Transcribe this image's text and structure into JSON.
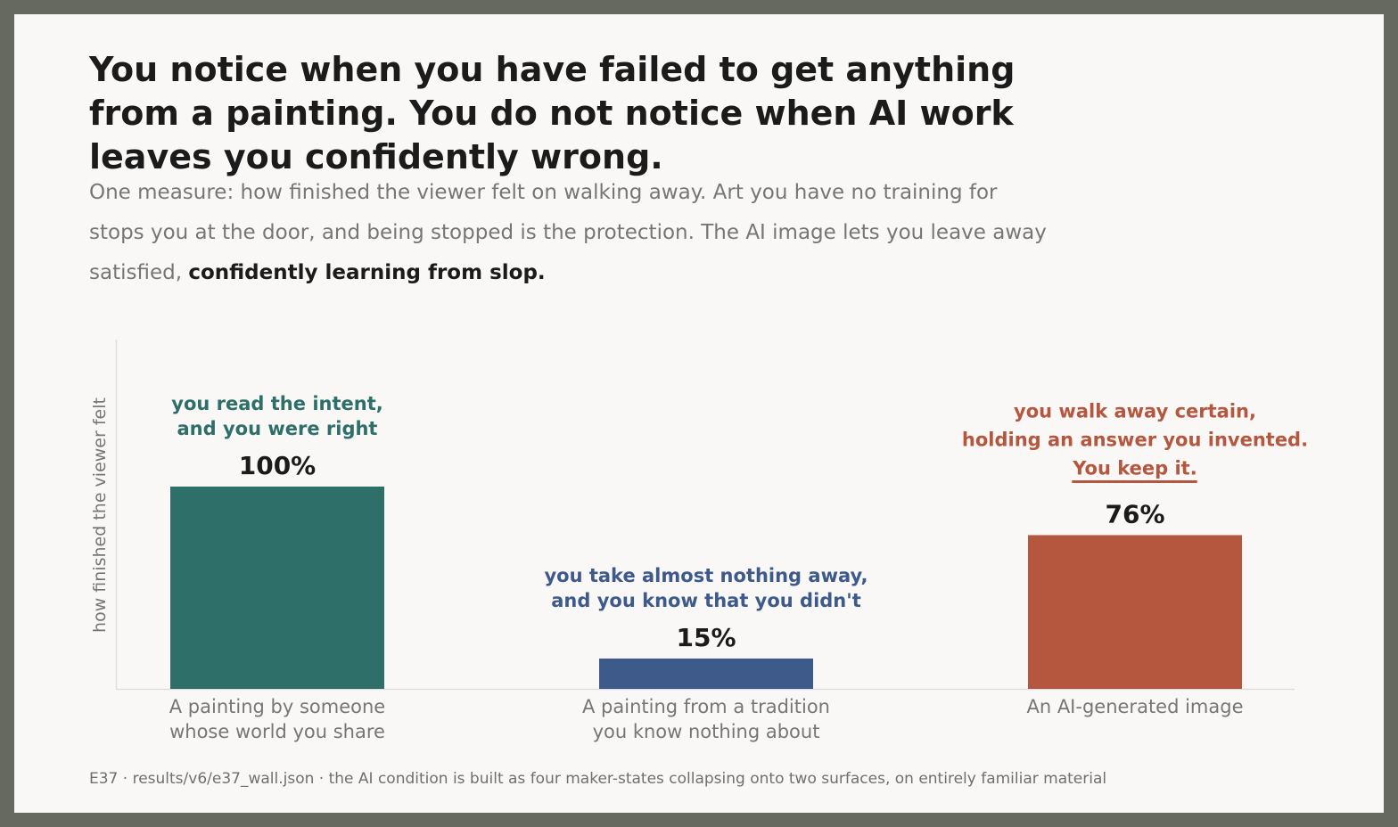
{
  "header": {
    "title": "You notice when you have failed to get anything from a painting. You do not notice when AI work leaves you confidently wrong.",
    "subtitle_plain": "One measure: how finished the viewer felt on walking away. Art you have no training for stops you at the door, and being stopped is the protection. The AI image lets you leave away satisfied, ",
    "subtitle_bold": "confidently learning from slop."
  },
  "chart_data": {
    "type": "bar",
    "ylabel": "how finished the viewer felt",
    "ylim": [
      0,
      100
    ],
    "grid": false,
    "categories": [
      [
        "A painting by someone",
        "whose world you share"
      ],
      [
        "A painting from a tradition",
        "you know nothing about"
      ],
      [
        "An AI-generated image"
      ]
    ],
    "values": [
      100,
      15,
      76
    ],
    "value_labels": [
      "100%",
      "15%",
      "76%"
    ],
    "colors": [
      "#2f6f69",
      "#3d5a8b",
      "#b5573f"
    ],
    "annotations": [
      [
        "you read the intent,",
        "and you were right"
      ],
      [
        "you take almost nothing away,",
        "and you know that you didn't"
      ],
      [
        "you walk away certain,",
        "holding an answer you invented.",
        "You keep it."
      ]
    ]
  },
  "footer": {
    "note": "E37 · results/v6/e37_wall.json · the AI condition is built as four maker-states collapsing onto two surfaces, on entirely familiar material"
  }
}
